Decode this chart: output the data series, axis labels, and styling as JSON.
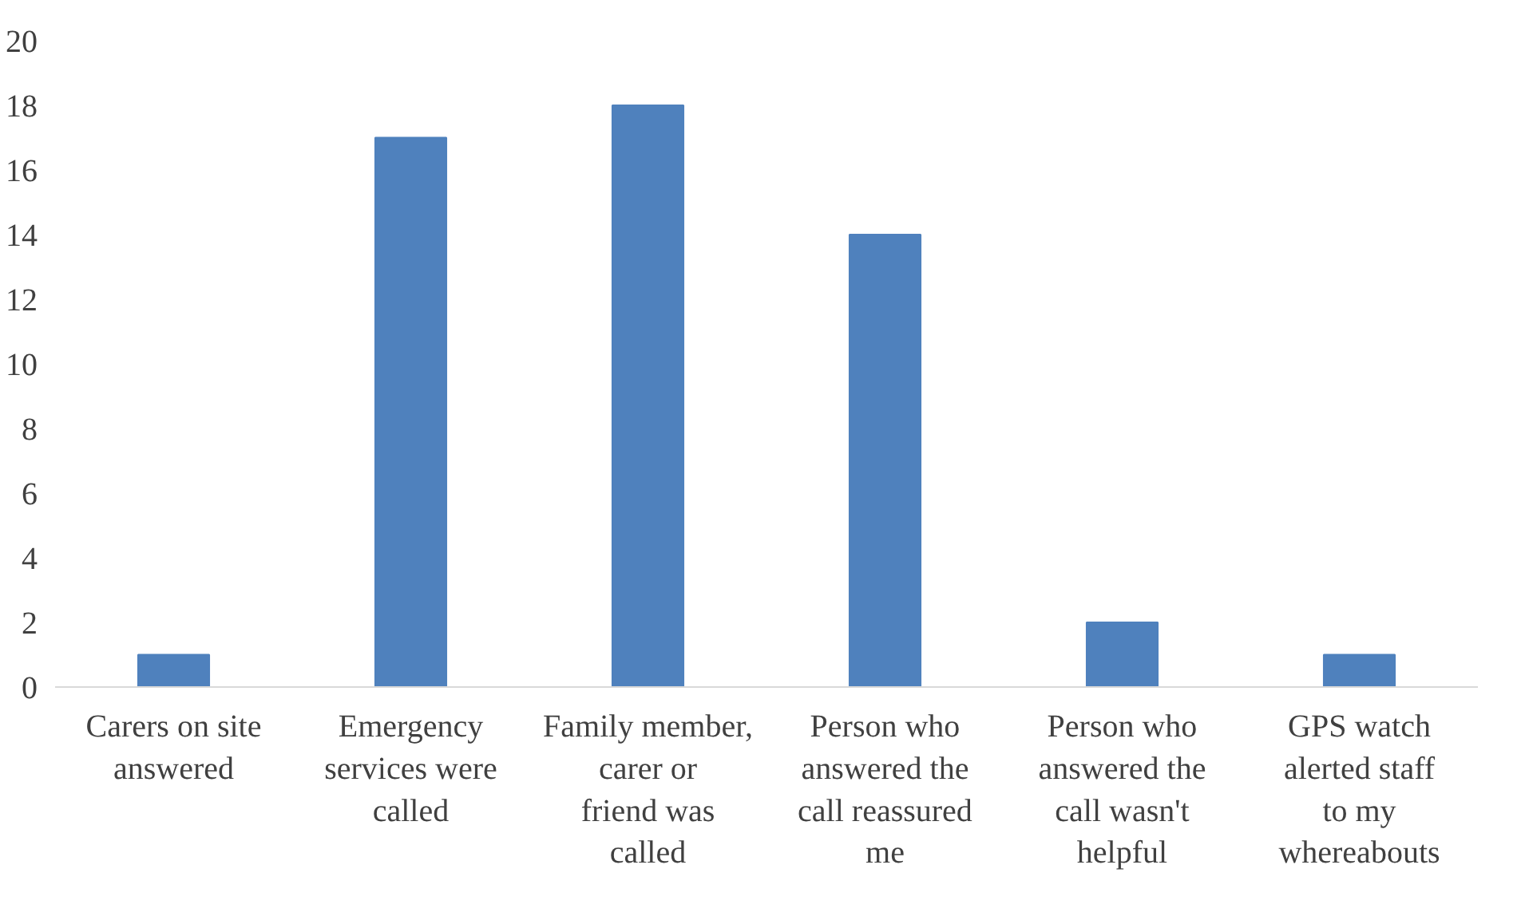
{
  "chart_data": {
    "type": "bar",
    "categories": [
      "Carers on site answered",
      "Emergency services were called",
      "Family member, carer or friend was called",
      "Person who answered the call reassured me",
      "Person who answered the call wasn't helpful",
      "GPS watch alerted staff to my whereabouts"
    ],
    "values": [
      1,
      17,
      18,
      14,
      2,
      1
    ],
    "color": "#4f81bd",
    "ylim": [
      0,
      20
    ],
    "yticks": [
      0,
      2,
      4,
      6,
      8,
      10,
      12,
      14,
      16,
      18,
      20
    ],
    "grid": false
  }
}
